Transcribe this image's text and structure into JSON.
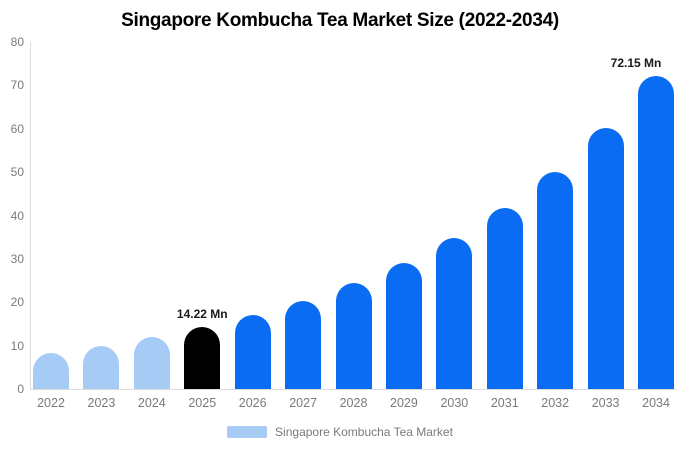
{
  "chart_data": {
    "type": "bar",
    "title": "Singapore Kombucha Tea Market Size (2022-2034)",
    "unit": "Mn",
    "categories": [
      "2022",
      "2023",
      "2024",
      "2025",
      "2026",
      "2027",
      "2028",
      "2029",
      "2030",
      "2031",
      "2032",
      "2033",
      "2034"
    ],
    "series": [
      {
        "name": "Singapore Kombucha Tea Market",
        "values": [
          8.3,
          9.9,
          11.9,
          14.22,
          17.0,
          20.4,
          24.4,
          29.1,
          34.9,
          41.8,
          50.1,
          60.1,
          72.15
        ]
      }
    ],
    "bar_styles": [
      "historical",
      "historical",
      "historical",
      "highlight",
      "forecast",
      "forecast",
      "forecast",
      "forecast",
      "forecast",
      "forecast",
      "forecast",
      "forecast",
      "forecast"
    ],
    "value_labels": [
      {
        "year": "2025",
        "text": "14.22 Mn"
      },
      {
        "year": "2034",
        "text": "72.15 Mn"
      }
    ],
    "xlabel": "",
    "ylabel": "",
    "ylim": [
      0,
      80
    ],
    "yticks": [
      0,
      10,
      20,
      30,
      40,
      50,
      60,
      70,
      80
    ],
    "grid": false,
    "legend": {
      "position": "bottom",
      "label": "Singapore Kombucha Tea Market",
      "swatch_color": "#a6ccf5"
    },
    "colors": {
      "historical": "#a6ccf5",
      "highlight": "#000000",
      "forecast": "#0a6cf2",
      "axis_line": "#dcdcdc",
      "tick_text": "#7a7a7a",
      "title_text": "#000000",
      "value_label_text": "#18191b",
      "background": "#ffffff"
    }
  }
}
